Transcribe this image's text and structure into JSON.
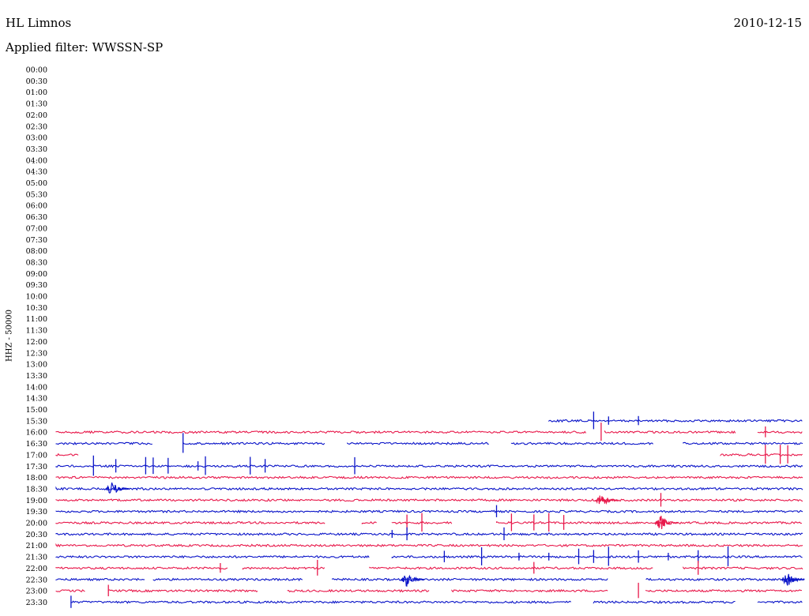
{
  "header": {
    "station": "HL Limnos",
    "date": "2010-12-15",
    "filter": "Applied filter: WWSSN-SP"
  },
  "chart_data": {
    "type": "line",
    "title": "HL Limnos",
    "subtitle": "Applied filter: WWSSN-SP",
    "ylabel": "HHZ - 50000",
    "xlabel": "",
    "colors": {
      "even_rows": "#e8194b",
      "odd_rows": "#0a14c8"
    },
    "rows": [
      {
        "time": "00:00",
        "segments": []
      },
      {
        "time": "00:30",
        "segments": []
      },
      {
        "time": "01:00",
        "segments": []
      },
      {
        "time": "01:30",
        "segments": []
      },
      {
        "time": "02:00",
        "segments": []
      },
      {
        "time": "02:30",
        "segments": []
      },
      {
        "time": "03:00",
        "segments": []
      },
      {
        "time": "03:30",
        "segments": []
      },
      {
        "time": "04:00",
        "segments": []
      },
      {
        "time": "04:30",
        "segments": []
      },
      {
        "time": "05:00",
        "segments": []
      },
      {
        "time": "05:30",
        "segments": []
      },
      {
        "time": "06:00",
        "segments": []
      },
      {
        "time": "06:30",
        "segments": []
      },
      {
        "time": "07:00",
        "segments": []
      },
      {
        "time": "07:30",
        "segments": []
      },
      {
        "time": "08:00",
        "segments": []
      },
      {
        "time": "08:30",
        "segments": []
      },
      {
        "time": "09:00",
        "segments": []
      },
      {
        "time": "09:30",
        "segments": []
      },
      {
        "time": "10:00",
        "segments": []
      },
      {
        "time": "10:30",
        "segments": []
      },
      {
        "time": "11:00",
        "segments": []
      },
      {
        "time": "11:30",
        "segments": []
      },
      {
        "time": "12:00",
        "segments": []
      },
      {
        "time": "12:30",
        "segments": []
      },
      {
        "time": "13:00",
        "segments": []
      },
      {
        "time": "13:30",
        "segments": []
      },
      {
        "time": "14:00",
        "segments": []
      },
      {
        "time": "14:30",
        "segments": []
      },
      {
        "time": "15:00",
        "segments": []
      },
      {
        "time": "15:30",
        "segments": [
          [
            0.66,
            1.0
          ]
        ],
        "spikes": [
          0.72,
          0.74,
          0.78
        ]
      },
      {
        "time": "16:00",
        "segments": [
          [
            0.0,
            0.71
          ],
          [
            0.735,
            0.91
          ],
          [
            0.94,
            1.0
          ]
        ],
        "spikes": [
          0.73,
          0.95
        ]
      },
      {
        "time": "16:30",
        "segments": [
          [
            0.0,
            0.13
          ],
          [
            0.17,
            0.36
          ],
          [
            0.39,
            0.58
          ],
          [
            0.61,
            0.8
          ],
          [
            0.84,
            1.0
          ]
        ],
        "spikes": [
          0.17
        ]
      },
      {
        "time": "17:00",
        "segments": [
          [
            0.0,
            0.03
          ],
          [
            0.89,
            1.0
          ]
        ],
        "spikes": [
          0.95,
          0.97,
          0.98
        ]
      },
      {
        "time": "17:30",
        "segments": [
          [
            0.0,
            1.0
          ]
        ],
        "spikes": [
          0.05,
          0.08,
          0.12,
          0.13,
          0.15,
          0.19,
          0.2,
          0.26,
          0.28,
          0.4
        ]
      },
      {
        "time": "18:00",
        "segments": [
          [
            0.0,
            1.0
          ]
        ]
      },
      {
        "time": "18:30",
        "segments": [
          [
            0.0,
            1.0
          ]
        ],
        "bursts": [
          0.075
        ]
      },
      {
        "time": "19:00",
        "segments": [
          [
            0.0,
            1.0
          ]
        ],
        "bursts": [
          0.73
        ],
        "spikes": [
          0.81
        ]
      },
      {
        "time": "19:30",
        "segments": [
          [
            0.0,
            1.0
          ]
        ],
        "spikes": [
          0.59
        ]
      },
      {
        "time": "20:00",
        "segments": [
          [
            0.0,
            0.36
          ],
          [
            0.41,
            0.43
          ],
          [
            0.45,
            0.53
          ],
          [
            0.59,
            1.0
          ]
        ],
        "bursts": [
          0.81
        ],
        "spikes": [
          0.47,
          0.49,
          0.61,
          0.64,
          0.66,
          0.68
        ]
      },
      {
        "time": "20:30",
        "segments": [
          [
            0.0,
            1.0
          ]
        ],
        "spikes": [
          0.45,
          0.47,
          0.6
        ]
      },
      {
        "time": "21:00",
        "segments": [
          [
            0.0,
            1.0
          ]
        ]
      },
      {
        "time": "21:30",
        "segments": [
          [
            0.0,
            0.42
          ],
          [
            0.45,
            1.0
          ]
        ],
        "spikes": [
          0.52,
          0.57,
          0.62,
          0.66,
          0.7,
          0.72,
          0.74,
          0.78,
          0.82,
          0.86,
          0.9
        ]
      },
      {
        "time": "22:00",
        "segments": [
          [
            0.0,
            0.23
          ],
          [
            0.25,
            0.36
          ],
          [
            0.42,
            0.8
          ],
          [
            0.84,
            1.0
          ]
        ],
        "spikes": [
          0.22,
          0.35,
          0.64,
          0.86
        ]
      },
      {
        "time": "22:30",
        "segments": [
          [
            0.0,
            0.12
          ],
          [
            0.13,
            0.33
          ],
          [
            0.37,
            0.74
          ],
          [
            0.79,
            1.0
          ]
        ],
        "bursts": [
          0.47,
          0.98
        ]
      },
      {
        "time": "23:00",
        "segments": [
          [
            0.0,
            0.04
          ],
          [
            0.07,
            0.27
          ],
          [
            0.31,
            0.5
          ],
          [
            0.53,
            0.74
          ],
          [
            0.79,
            1.0
          ]
        ],
        "spikes": [
          0.07,
          0.78
        ]
      },
      {
        "time": "23:30",
        "segments": [
          [
            0.02,
            0.69
          ],
          [
            0.72,
            0.91
          ],
          [
            0.94,
            1.0
          ]
        ],
        "spikes": [
          0.02
        ]
      }
    ]
  }
}
